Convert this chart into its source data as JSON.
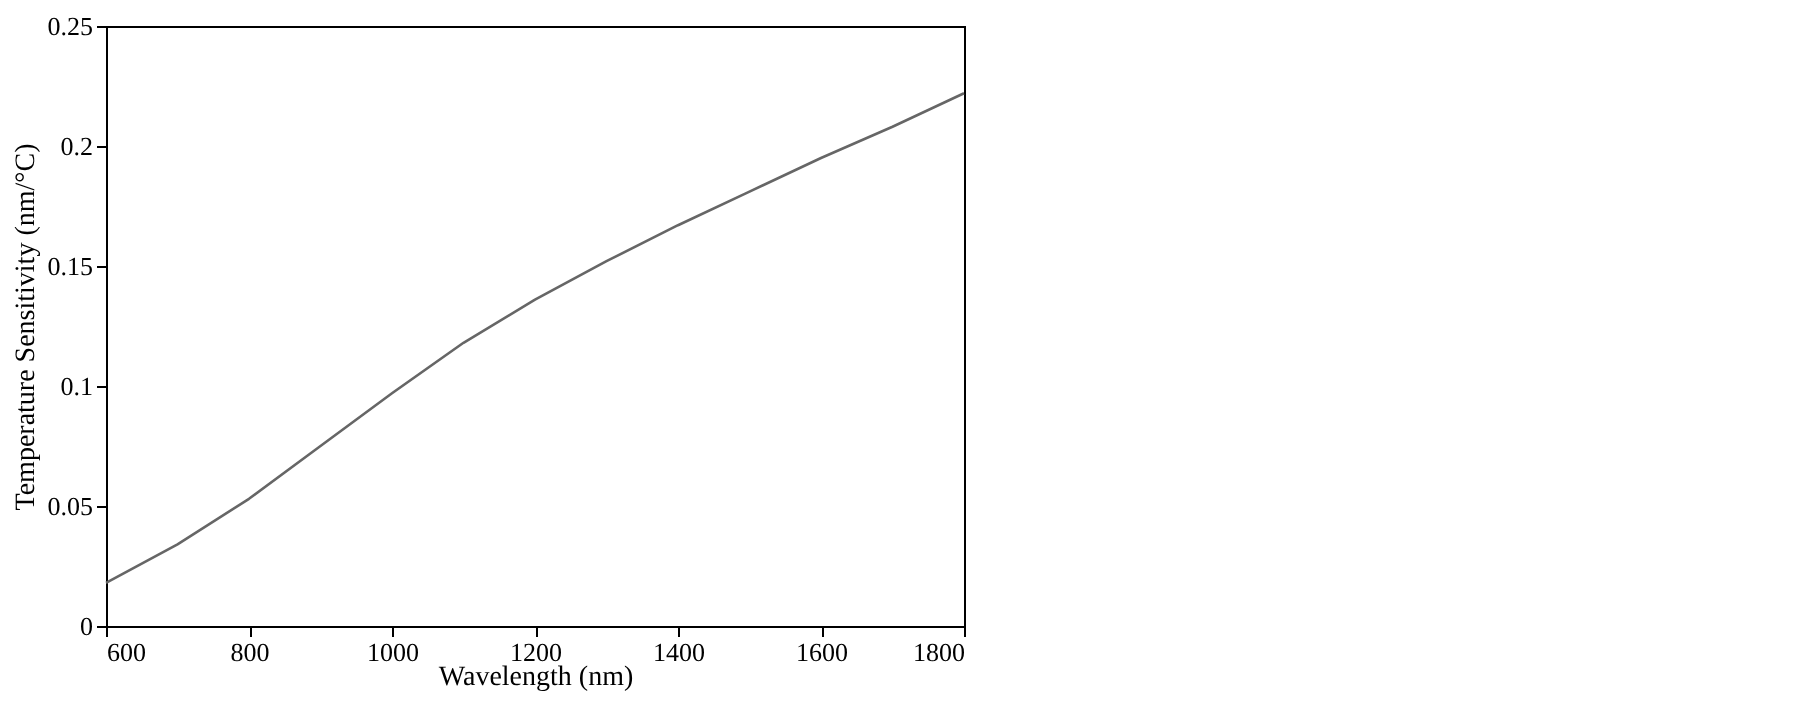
{
  "chart_data": {
    "type": "line",
    "xlabel": "Wavelength (nm)",
    "ylabel": "Temperature  Sensitivity (nm/°C)",
    "x": [
      600,
      700,
      800,
      900,
      1000,
      1100,
      1200,
      1300,
      1400,
      1500,
      1600,
      1700,
      1800
    ],
    "series": [
      {
        "color": "#666666",
        "values": [
          0.018,
          0.034,
          0.053,
          0.075,
          0.097,
          0.118,
          0.136,
          0.152,
          0.167,
          0.181,
          0.195,
          0.208,
          0.222
        ]
      }
    ],
    "xlim": [
      600,
      1800
    ],
    "xticks": [
      600,
      800,
      1000,
      1200,
      1400,
      1600,
      1800
    ],
    "ylim": [
      0,
      0.25
    ],
    "yticks": [
      0,
      0.05,
      0.1,
      0.15,
      0.2,
      0.25
    ],
    "grid": false,
    "marker": "none",
    "line_style": "solid"
  }
}
